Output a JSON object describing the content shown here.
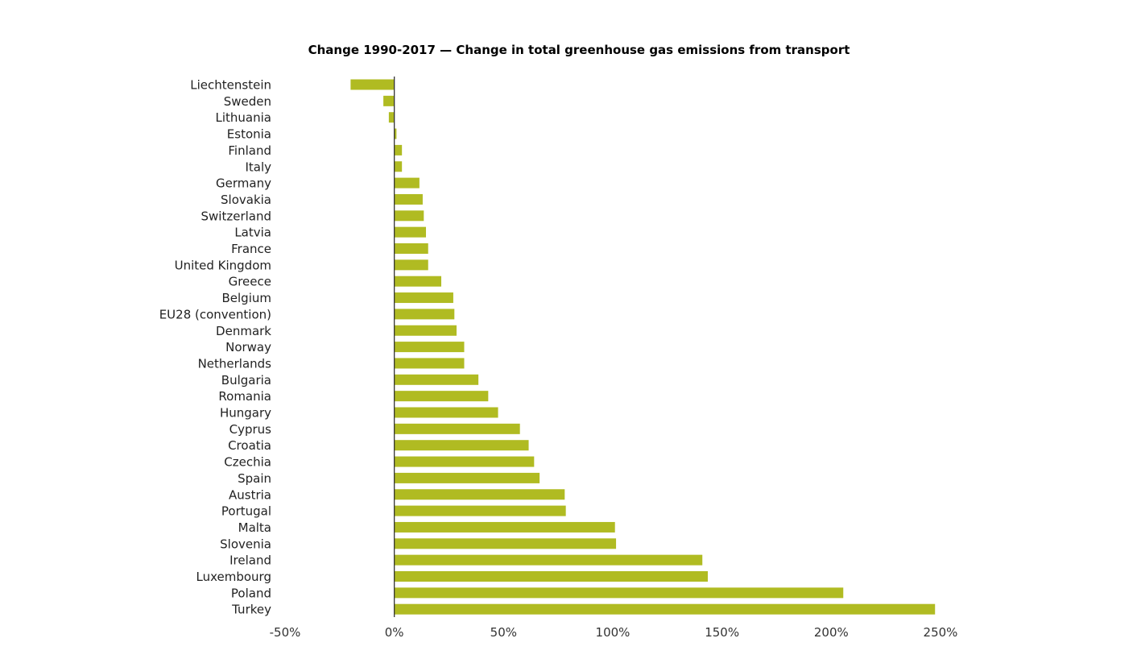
{
  "chart_data": {
    "type": "bar",
    "orientation": "horizontal",
    "title": "Change 1990-2017 — Change in total greenhouse gas emissions from transport",
    "xlabel": "",
    "ylabel": "",
    "xlim": [
      -50,
      250
    ],
    "x_ticks": [
      -50,
      0,
      50,
      100,
      150,
      200,
      250
    ],
    "x_tick_labels": [
      "-50%",
      "0%",
      "50%",
      "100%",
      "150%",
      "200%",
      "250%"
    ],
    "grid": false,
    "legend": "none",
    "bar_color": "#b0bb22",
    "categories": [
      "Liechtenstein",
      "Sweden",
      "Lithuania",
      "Estonia",
      "Finland",
      "Italy",
      "Germany",
      "Slovakia",
      "Switzerland",
      "Latvia",
      "France",
      "United Kingdom",
      "Greece",
      "Belgium",
      "EU28 (convention)",
      "Denmark",
      "Norway",
      "Netherlands",
      "Bulgaria",
      "Romania",
      "Hungary",
      "Cyprus",
      "Croatia",
      "Czechia",
      "Spain",
      "Austria",
      "Portugal",
      "Malta",
      "Slovenia",
      "Ireland",
      "Luxembourg",
      "Poland",
      "Turkey"
    ],
    "values": [
      -20,
      -5,
      -2.5,
      1,
      3.5,
      3.5,
      11.5,
      13,
      13.5,
      14.5,
      15.5,
      15.5,
      21.5,
      27,
      27.5,
      28.5,
      32,
      32,
      38.5,
      43,
      47.5,
      57.5,
      61.5,
      64,
      66.5,
      78,
      78.5,
      101,
      101.5,
      141,
      143.5,
      205.5,
      247.5
    ]
  }
}
